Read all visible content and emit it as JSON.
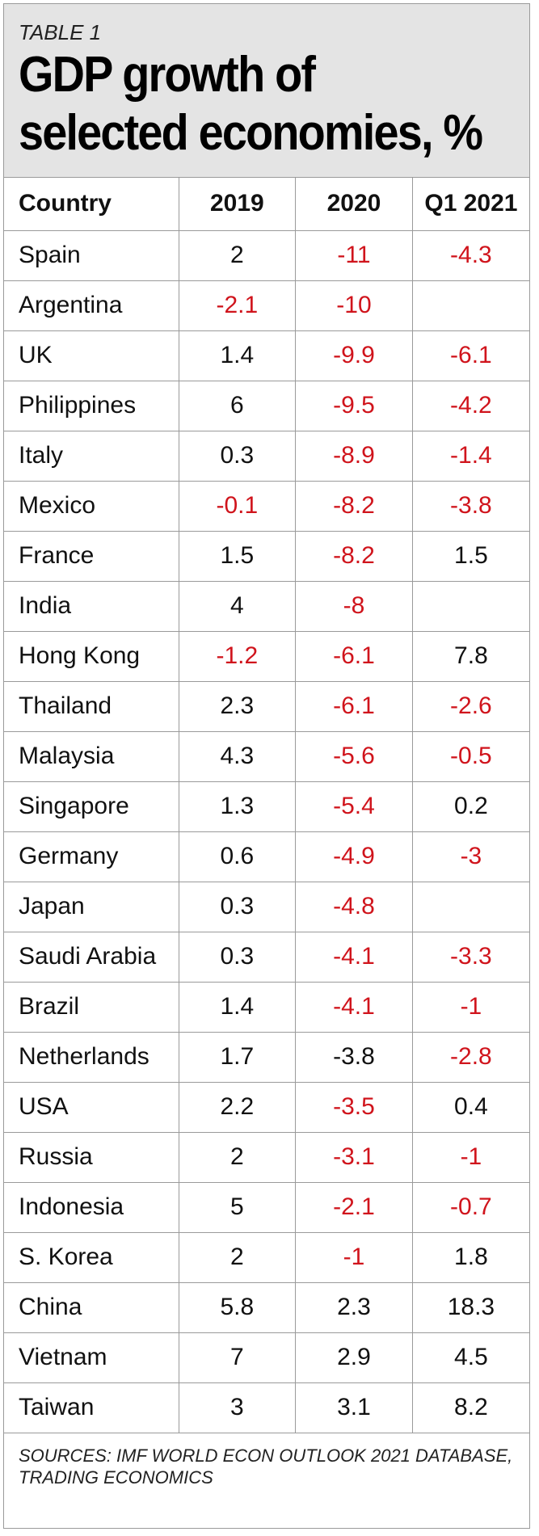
{
  "header": {
    "table_label": "TABLE 1",
    "title_line1": "GDP growth of",
    "title_line2": "selected economies, %"
  },
  "colors": {
    "negative": "#d0141c",
    "positive": "#111111",
    "header_bg": "#e4e4e4"
  },
  "chart_data": {
    "type": "table",
    "columns": [
      "Country",
      "2019",
      "2020",
      "Q1 2021"
    ],
    "rows": [
      {
        "country": "Spain",
        "y2019": "2",
        "y2020": "-11",
        "q1_2021": "-4.3"
      },
      {
        "country": "Argentina",
        "y2019": "-2.1",
        "y2020": "-10",
        "q1_2021": ""
      },
      {
        "country": "UK",
        "y2019": "1.4",
        "y2020": "-9.9",
        "q1_2021": "-6.1"
      },
      {
        "country": "Philippines",
        "y2019": "6",
        "y2020": "-9.5",
        "q1_2021": "-4.2"
      },
      {
        "country": "Italy",
        "y2019": "0.3",
        "y2020": "-8.9",
        "q1_2021": "-1.4"
      },
      {
        "country": "Mexico",
        "y2019": "-0.1",
        "y2020": "-8.2",
        "q1_2021": "-3.8"
      },
      {
        "country": "France",
        "y2019": "1.5",
        "y2020": "-8.2",
        "q1_2021": "1.5"
      },
      {
        "country": "India",
        "y2019": "4",
        "y2020": "-8",
        "q1_2021": ""
      },
      {
        "country": "Hong Kong",
        "y2019": "-1.2",
        "y2020": "-6.1",
        "q1_2021": "7.8"
      },
      {
        "country": "Thailand",
        "y2019": "2.3",
        "y2020": "-6.1",
        "q1_2021": "-2.6"
      },
      {
        "country": "Malaysia",
        "y2019": "4.3",
        "y2020": "-5.6",
        "q1_2021": "-0.5"
      },
      {
        "country": "Singapore",
        "y2019": "1.3",
        "y2020": "-5.4",
        "q1_2021": "0.2"
      },
      {
        "country": "Germany",
        "y2019": "0.6",
        "y2020": "-4.9",
        "q1_2021": "-3"
      },
      {
        "country": "Japan",
        "y2019": "0.3",
        "y2020": "-4.8",
        "q1_2021": ""
      },
      {
        "country": "Saudi Arabia",
        "y2019": "0.3",
        "y2020": "-4.1",
        "q1_2021": "-3.3"
      },
      {
        "country": "Brazil",
        "y2019": "1.4",
        "y2020": "-4.1",
        "q1_2021": "-1"
      },
      {
        "country": "Netherlands",
        "y2019": "1.7",
        "y2020": "-3.8",
        "q1_2021": "-2.8"
      },
      {
        "country": "USA",
        "y2019": "2.2",
        "y2020": "-3.5",
        "q1_2021": "0.4"
      },
      {
        "country": "Russia",
        "y2019": "2",
        "y2020": "-3.1",
        "q1_2021": "-1"
      },
      {
        "country": "Indonesia",
        "y2019": "5",
        "y2020": "-2.1",
        "q1_2021": "-0.7"
      },
      {
        "country": "S. Korea",
        "y2019": "2",
        "y2020": "-1",
        "q1_2021": "1.8"
      },
      {
        "country": "China",
        "y2019": "5.8",
        "y2020": "2.3",
        "q1_2021": "18.3"
      },
      {
        "country": "Vietnam",
        "y2019": "7",
        "y2020": "2.9",
        "q1_2021": "4.5"
      },
      {
        "country": "Taiwan",
        "y2019": "3",
        "y2020": "3.1",
        "q1_2021": "8.2"
      }
    ],
    "black_overrides": [
      {
        "row": 16,
        "col": "y2020"
      }
    ]
  },
  "footer": {
    "line1": "SOURCES: IMF WORLD ECON OUTLOOK 2021 DATABASE,",
    "line2": "TRADING ECONOMICS"
  }
}
